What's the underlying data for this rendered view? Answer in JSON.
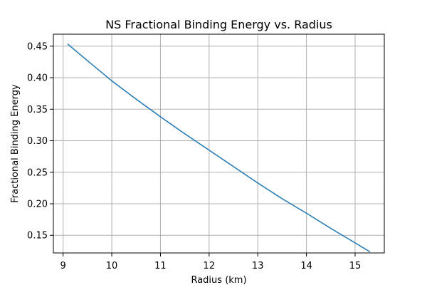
{
  "chart_data": {
    "type": "line",
    "title": "NS Fractional Binding Energy vs. Radius",
    "xlabel": "Radius (km)",
    "ylabel": "Fractional Binding Energy",
    "xlim": [
      8.8,
      15.6
    ],
    "ylim": [
      0.122,
      0.469
    ],
    "x_ticks": [
      9,
      10,
      11,
      12,
      13,
      14,
      15
    ],
    "x_tick_labels": [
      "9",
      "10",
      "11",
      "12",
      "13",
      "14",
      "15"
    ],
    "y_ticks": [
      0.15,
      0.2,
      0.25,
      0.3,
      0.35,
      0.4,
      0.45
    ],
    "y_tick_labels": [
      "0.15",
      "0.20",
      "0.25",
      "0.30",
      "0.35",
      "0.40",
      "0.45"
    ],
    "grid": true,
    "series": [
      {
        "color": "#1f77b4",
        "x": [
          9.1,
          9.5,
          10.0,
          10.5,
          11.0,
          11.5,
          12.0,
          12.5,
          13.0,
          13.5,
          14.0,
          14.5,
          15.0,
          15.3
        ],
        "values": [
          0.453,
          0.427,
          0.395,
          0.366,
          0.338,
          0.311,
          0.285,
          0.259,
          0.233,
          0.208,
          0.185,
          0.161,
          0.138,
          0.124
        ]
      }
    ]
  }
}
